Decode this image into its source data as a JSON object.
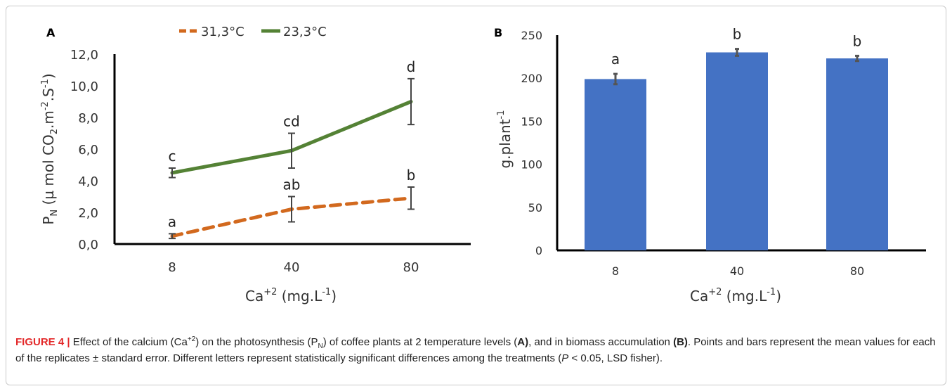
{
  "figure": {
    "caption": {
      "label": "FIGURE 4 |",
      "t1": " Effect of the calcium (Ca",
      "sup1": "+2",
      "t2": ") on the photosynthesis (P",
      "sub1": "N",
      "t3": ") of coffee plants at 2 temperature levels (",
      "bA": "A)",
      "t4": ", and in biomass accumulation ",
      "bB": "(B)",
      "t5": ". Points and bars represent the mean values for each of the replicates ± standard error. Different letters represent statistically significant differences among the treatments (",
      "italP": "P",
      "t6": " < 0.05, LSD fisher)."
    }
  },
  "chart_data": [
    {
      "panel": "A",
      "type": "line",
      "categories": [
        "8",
        "40",
        "80"
      ],
      "xlabel": {
        "base": "Ca",
        "sup": "+2",
        "rest": "  (mg.L",
        "sup2": "-1",
        "end": ")"
      },
      "ylabel": {
        "p": "P",
        "sub": "N",
        "mid": " (µ mol CO",
        "sub2": "2",
        "m2": ".m",
        "sup": "-2",
        "s": ".S",
        "sup2": "-1",
        "end": ")"
      },
      "ylim": [
        0,
        12
      ],
      "yticks": [
        "0,0",
        "2,0",
        "4,0",
        "6,0",
        "8,0",
        "10,0",
        "12,0"
      ],
      "legend_position": "top",
      "grid": false,
      "series": [
        {
          "name": "31,3°C",
          "color": "#d2691e",
          "dashed": true,
          "values": [
            0.5,
            2.2,
            2.9
          ],
          "errors": [
            0.15,
            0.8,
            0.7
          ],
          "letters": [
            "a",
            "ab",
            "b"
          ]
        },
        {
          "name": "23,3°C",
          "color": "#548235",
          "dashed": false,
          "values": [
            4.5,
            5.9,
            9.0
          ],
          "errors": [
            0.3,
            1.1,
            1.45
          ],
          "letters": [
            "c",
            "cd",
            "d"
          ]
        }
      ]
    },
    {
      "panel": "B",
      "type": "bar",
      "categories": [
        "8",
        "40",
        "80"
      ],
      "values": [
        199,
        230,
        223
      ],
      "errors": [
        6,
        4,
        3
      ],
      "letters": [
        "a",
        "b",
        "b"
      ],
      "color": "#4472c4",
      "xlabel": {
        "base": "Ca",
        "sup": "+2",
        "rest": " (mg.L",
        "sup2": "-1",
        "end": ")"
      },
      "ylabel": {
        "base": "g.plant",
        "sup": "-1"
      },
      "ylim": [
        0,
        250
      ],
      "yticks": [
        "0",
        "50",
        "100",
        "150",
        "200",
        "250"
      ],
      "grid": false
    }
  ]
}
